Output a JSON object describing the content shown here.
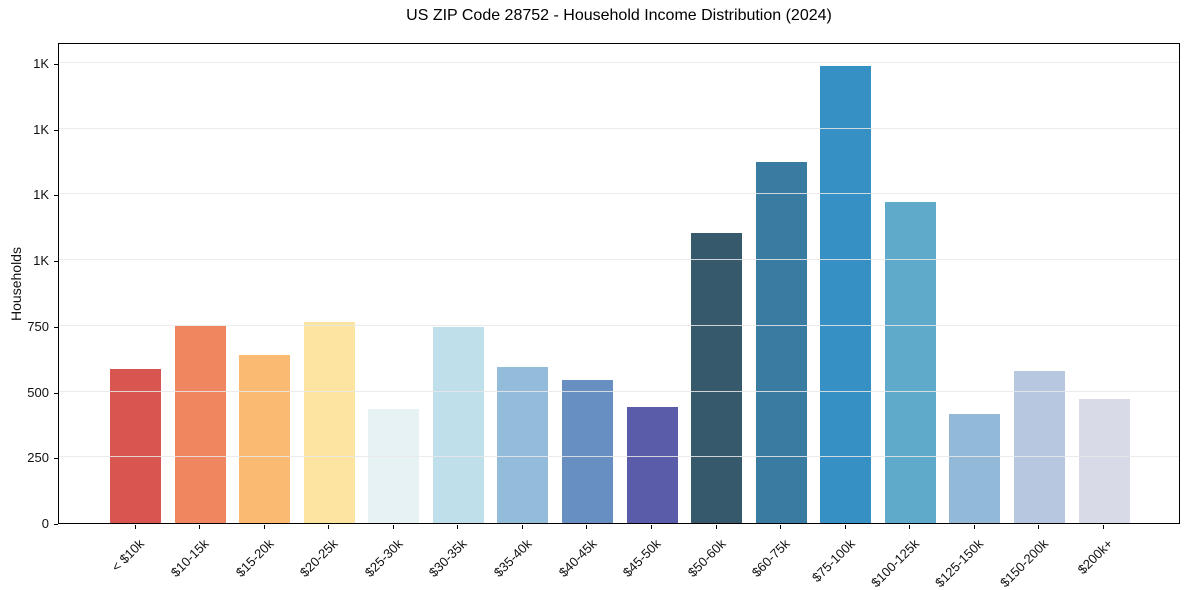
{
  "figure": {
    "background": "#ffffff",
    "spine_color": "#000000",
    "gridline_color": "#e7e7e7",
    "text_color": "#111111"
  },
  "chart_data": {
    "type": "bar",
    "title": "US ZIP Code 28752 - Household Income Distribution (2024)",
    "xlabel": "",
    "ylabel": "Households",
    "categories": [
      "< $10k",
      "$10-15k",
      "$15-20k",
      "$20-25k",
      "$25-30k",
      "$30-35k",
      "$35-40k",
      "$40-45k",
      "$45-50k",
      "$50-60k",
      "$60-75k",
      "$75-100k",
      "$100-125k",
      "$125-150k",
      "$150-200k",
      "$200k+"
    ],
    "values": [
      585,
      750,
      640,
      765,
      435,
      745,
      595,
      545,
      440,
      1105,
      1375,
      1740,
      1220,
      415,
      580,
      470
    ],
    "bar_colors": [
      "#d8564f",
      "#ef8660",
      "#fbba72",
      "#fde4a0",
      "#e7f2f4",
      "#bfdfeb",
      "#92bcda",
      "#688fc2",
      "#5a5caa",
      "#36596b",
      "#3a7ca1",
      "#3790c4",
      "#5fa9ca",
      "#93b9d8",
      "#b7c7e0",
      "#d9dae7"
    ],
    "ylim": [
      0,
      1830
    ],
    "yticks": [
      {
        "value": 0,
        "label": "0"
      },
      {
        "value": 250,
        "label": "250"
      },
      {
        "value": 500,
        "label": "500"
      },
      {
        "value": 750,
        "label": "750"
      },
      {
        "value": 1000,
        "label": "1K"
      },
      {
        "value": 1250,
        "label": "1K"
      },
      {
        "value": 1500,
        "label": "1K"
      },
      {
        "value": 1750,
        "label": "1K"
      }
    ],
    "grid": "horizontal",
    "legend": "none"
  }
}
